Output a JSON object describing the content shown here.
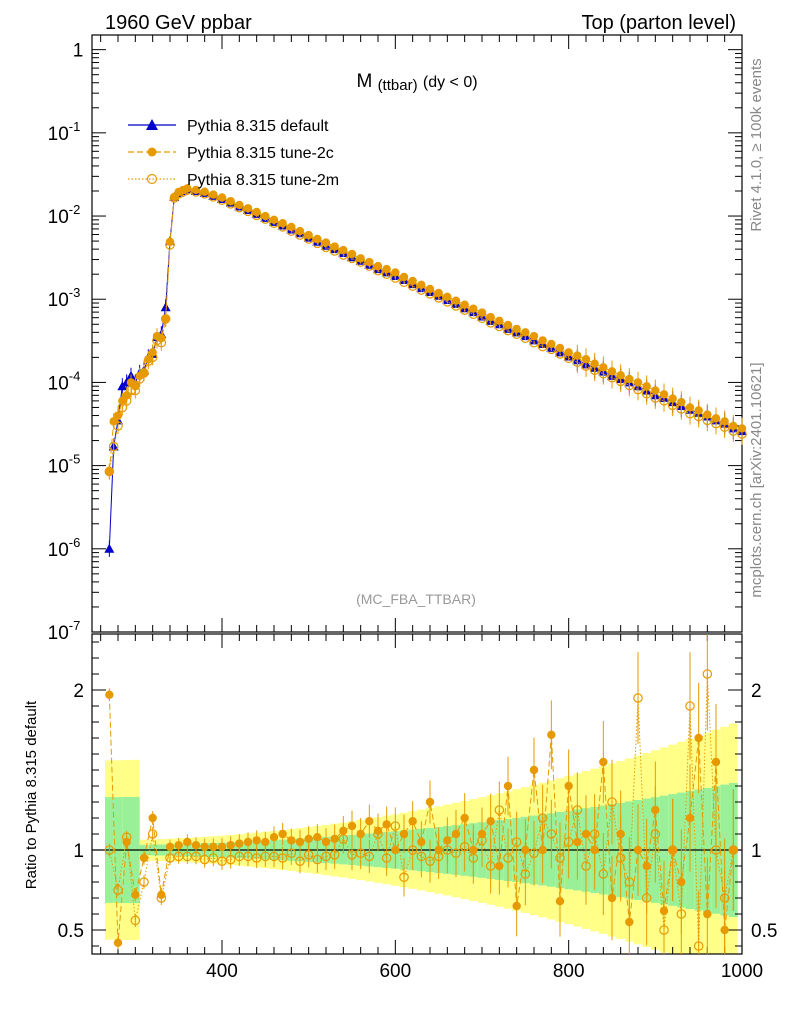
{
  "header": {
    "left": "1960 GeV ppbar",
    "right": "Top (parton level)"
  },
  "side": {
    "rivet": "Rivet 4.1.0, ≥ 100k events",
    "mcplots": "mcplots.cern.ch [arXiv:2401.10621]"
  },
  "chart_data": {
    "type": "line",
    "title_main": "M",
    "title_sub": "(ttbar)",
    "title_tail": "(dy < 0)",
    "analysis_label": "(MC_FBA_TTBAR)",
    "xlim": [
      250,
      1000
    ],
    "ylim_log": [
      1e-07,
      1.5
    ],
    "x_ticks": [
      400,
      600,
      800,
      1000
    ],
    "y_ticks": [
      {
        "label": "10",
        "exp": "-7",
        "value": 1e-07
      },
      {
        "label": "10",
        "exp": "-6",
        "value": 1e-06
      },
      {
        "label": "10",
        "exp": "-5",
        "value": 1e-05
      },
      {
        "label": "10",
        "exp": "-4",
        "value": 0.0001
      },
      {
        "label": "10",
        "exp": "-3",
        "value": 0.001
      },
      {
        "label": "10",
        "exp": "-2",
        "value": 0.01
      },
      {
        "label": "10",
        "exp": "-1",
        "value": 0.1
      },
      {
        "label": "1",
        "exp": "",
        "value": 1
      }
    ],
    "ratio": {
      "ylabel": "Ratio to Pythia 8.315 default",
      "ylim": [
        0.35,
        2.35
      ],
      "ticks": [
        {
          "label": "0.5",
          "value": 0.5
        },
        {
          "label": "1",
          "value": 1
        },
        {
          "label": "2",
          "value": 2
        }
      ]
    },
    "series": [
      {
        "name": "Pythia 8.315 default",
        "color": "#0000cc",
        "marker": "triangle",
        "dash": ""
      },
      {
        "name": "Pythia 8.315 tune-2c",
        "color": "#e69a00",
        "marker": "filled-circle",
        "dash": "6,3"
      },
      {
        "name": "Pythia 8.315 tune-2m",
        "color": "#e69a00",
        "marker": "open-circle",
        "dash": "1.5,2"
      }
    ],
    "band_colors": {
      "inner": "#99f099",
      "outer": "#ffff88"
    },
    "spectrum": {
      "x": [
        270,
        275,
        280,
        285,
        290,
        295,
        300,
        305,
        310,
        315,
        320,
        325,
        330,
        335,
        340,
        345,
        350,
        355,
        360,
        370,
        380,
        390,
        400,
        410,
        420,
        430,
        440,
        450,
        460,
        470,
        480,
        490,
        500,
        510,
        520,
        530,
        540,
        550,
        560,
        570,
        580,
        590,
        600,
        610,
        620,
        630,
        640,
        650,
        660,
        670,
        680,
        690,
        700,
        710,
        720,
        730,
        740,
        750,
        760,
        770,
        780,
        790,
        800,
        810,
        820,
        830,
        840,
        850,
        860,
        870,
        880,
        890,
        900,
        910,
        920,
        930,
        940,
        950,
        960,
        970,
        980,
        990,
        1000
      ],
      "default": [
        1e-06,
        1.7e-05,
        3.5e-05,
        9e-05,
        0.0001,
        0.00012,
        0.0001,
        0.00013,
        0.00014,
        0.0002,
        0.00022,
        0.00035,
        0.00038,
        0.0008,
        0.005,
        0.017,
        0.019,
        0.02,
        0.021,
        0.02,
        0.019,
        0.0175,
        0.016,
        0.0145,
        0.013,
        0.0118,
        0.0106,
        0.0095,
        0.0085,
        0.0077,
        0.0069,
        0.0062,
        0.0055,
        0.0049,
        0.0044,
        0.004,
        0.0036,
        0.0032,
        0.0029,
        0.0026,
        0.0023,
        0.0021,
        0.0019,
        0.0017,
        0.00152,
        0.00136,
        0.00122,
        0.0011,
        0.00098,
        0.00088,
        0.00078,
        0.0007,
        0.00062,
        0.00055,
        0.0005,
        0.00044,
        0.0004,
        0.00036,
        0.00032,
        0.00029,
        0.00026,
        0.00023,
        0.000205,
        0.000185,
        0.000165,
        0.00015,
        0.000135,
        0.00012,
        0.00011,
        0.0001,
        9e-05,
        8e-05,
        7e-05,
        6.5e-05,
        5.8e-05,
        5.2e-05,
        4.7e-05,
        4.3e-05,
        3.9e-05,
        3.5e-05,
        3.2e-05,
        2.8e-05,
        2.6e-05
      ],
      "tune2c": [
        8.5e-06,
        3.4e-05,
        4e-05,
        6e-05,
        7e-05,
        0.0001,
        9e-05,
        0.00012,
        0.00013,
        0.00019,
        0.00023,
        0.00036,
        0.00034,
        0.00058,
        0.0049,
        0.017,
        0.0195,
        0.0205,
        0.0215,
        0.0206,
        0.0196,
        0.0181,
        0.0167,
        0.0151,
        0.0136,
        0.0124,
        0.0112,
        0.01,
        0.009,
        0.0082,
        0.0074,
        0.0066,
        0.0059,
        0.0053,
        0.0048,
        0.0043,
        0.0039,
        0.0035,
        0.0031,
        0.0028,
        0.0025,
        0.0023,
        0.0021,
        0.00185,
        0.00166,
        0.00149,
        0.00133,
        0.00119,
        0.00107,
        0.00096,
        0.00086,
        0.00077,
        0.00069,
        0.00061,
        0.00055,
        0.00049,
        0.00044,
        0.0004,
        0.00036,
        0.00032,
        0.00029,
        0.00026,
        0.00023,
        0.00021,
        0.00019,
        0.000168,
        0.000152,
        0.000136,
        0.000122,
        0.00011,
        0.0001,
        9e-05,
        8e-05,
        7.2e-05,
        6.4e-05,
        5.8e-05,
        5e-05,
        4.6e-05,
        4.1e-05,
        3.7e-05,
        3.4e-05,
        3e-05,
        2.8e-05
      ],
      "tune2m": [
        8.5e-06,
        1.7e-05,
        3e-05,
        5e-05,
        6e-05,
        8e-05,
        8e-05,
        0.00011,
        0.00013,
        0.00018,
        0.0002,
        0.00032,
        0.0003,
        0.00058,
        0.0045,
        0.0165,
        0.0185,
        0.0195,
        0.0205,
        0.0195,
        0.0185,
        0.017,
        0.0155,
        0.014,
        0.0126,
        0.0114,
        0.0102,
        0.0092,
        0.0082,
        0.0074,
        0.0066,
        0.0059,
        0.0053,
        0.0047,
        0.0042,
        0.0038,
        0.0034,
        0.0031,
        0.0028,
        0.0025,
        0.0022,
        0.002,
        0.0018,
        0.0016,
        0.00144,
        0.00129,
        0.00116,
        0.00104,
        0.00093,
        0.00083,
        0.00074,
        0.00066,
        0.00059,
        0.00052,
        0.00047,
        0.00042,
        0.00038,
        0.00034,
        0.0003,
        0.00027,
        0.00025,
        0.00022,
        0.000195,
        0.000175,
        0.000157,
        0.00014,
        0.000127,
        0.000114,
        0.000103,
        9.2e-05,
        8.2e-05,
        7.3e-05,
        6.5e-05,
        6e-05,
        5.3e-05,
        4.8e-05,
        4.2e-05,
        3.9e-05,
        3.5e-05,
        3.2e-05,
        2.9e-05,
        2.6e-05,
        2.4e-05
      ]
    },
    "ratio_points": {
      "x": [
        270,
        280,
        290,
        300,
        310,
        320,
        330,
        340,
        350,
        360,
        370,
        380,
        390,
        400,
        410,
        420,
        430,
        440,
        450,
        460,
        470,
        480,
        490,
        500,
        510,
        520,
        530,
        540,
        550,
        560,
        570,
        580,
        590,
        600,
        610,
        620,
        630,
        640,
        650,
        660,
        670,
        680,
        690,
        700,
        710,
        720,
        730,
        740,
        750,
        760,
        770,
        780,
        790,
        800,
        810,
        820,
        830,
        840,
        850,
        860,
        870,
        880,
        890,
        900,
        910,
        920,
        930,
        940,
        950,
        960,
        970,
        980,
        990
      ],
      "tune2c": [
        1.97,
        0.42,
        1.05,
        0.72,
        0.95,
        1.2,
        0.72,
        1.02,
        1.03,
        1.05,
        1.03,
        1.02,
        1.02,
        1.02,
        1.03,
        1.04,
        1.05,
        1.06,
        1.05,
        1.08,
        1.1,
        1.06,
        1.05,
        1.07,
        1.08,
        1.05,
        1.07,
        1.12,
        1.15,
        1.1,
        1.18,
        1.12,
        1.16,
        1.0,
        1.1,
        1.18,
        1.05,
        1.3,
        1.0,
        1.06,
        1.1,
        1.2,
        1.0,
        1.1,
        1.18,
        0.9,
        1.4,
        0.65,
        1.0,
        1.5,
        1.0,
        1.72,
        0.68,
        1.4,
        1.05,
        1.1,
        1.0,
        1.55,
        0.7,
        1.1,
        0.55,
        1.0,
        0.9,
        1.25,
        0.62,
        1.0,
        0.8,
        1.2,
        1.7,
        0.6,
        1.55,
        0.5,
        1.0
      ],
      "tune2m": [
        1.0,
        0.75,
        1.08,
        0.56,
        0.8,
        1.1,
        0.7,
        0.95,
        0.96,
        0.96,
        0.96,
        0.94,
        0.95,
        0.93,
        0.94,
        0.96,
        0.96,
        0.95,
        0.96,
        0.96,
        0.95,
        0.98,
        0.93,
        0.97,
        0.94,
        0.96,
        0.97,
        1.07,
        0.97,
        0.98,
        0.96,
        1.1,
        0.95,
        1.15,
        0.83,
        1.0,
        0.96,
        0.93,
        0.96,
        1.0,
        0.98,
        1.02,
        0.95,
        1.06,
        0.9,
        1.25,
        0.95,
        1.05,
        0.85,
        0.98,
        1.2,
        1.1,
        0.95,
        1.05,
        1.25,
        0.9,
        1.1,
        0.85,
        1.3,
        0.95,
        0.8,
        1.95,
        0.7,
        1.1,
        0.5,
        1.0,
        0.6,
        1.9,
        0.4,
        2.1,
        1.0,
        0.7,
        1.0
      ]
    }
  }
}
